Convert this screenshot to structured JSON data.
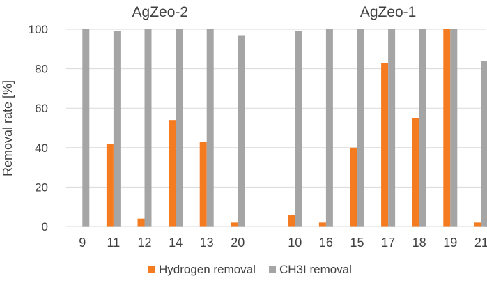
{
  "chart_data": {
    "type": "bar",
    "ylabel": "Removal rate [%]",
    "ylim": [
      0,
      100
    ],
    "yticks": [
      0,
      20,
      40,
      60,
      80,
      100
    ],
    "grid": true,
    "legend_position": "bottom",
    "groups": [
      {
        "name": "AgZeo-2",
        "categories": [
          "9",
          "11",
          "12",
          "14",
          "13",
          "20"
        ],
        "series": [
          {
            "name": "Hydrogen removal",
            "color": "#f47b20",
            "values": [
              0,
              42,
              4,
              54,
              43,
              2
            ]
          },
          {
            "name": "CH3I removal",
            "color": "#a5a5a5",
            "values": [
              100,
              99,
              100,
              100,
              100,
              97
            ]
          }
        ]
      },
      {
        "name": "AgZeo-1",
        "categories": [
          "10",
          "16",
          "15",
          "17",
          "18",
          "19",
          "21"
        ],
        "series": [
          {
            "name": "Hydrogen removal",
            "color": "#f47b20",
            "values": [
              6,
              2,
              40,
              83,
              55,
              100,
              2
            ]
          },
          {
            "name": "CH3I removal",
            "color": "#a5a5a5",
            "values": [
              99,
              100,
              100,
              100,
              100,
              100,
              84
            ]
          }
        ]
      }
    ],
    "legend": [
      {
        "name": "Hydrogen removal",
        "color": "#f47b20"
      },
      {
        "name": "CH3I removal",
        "color": "#a5a5a5"
      }
    ]
  }
}
